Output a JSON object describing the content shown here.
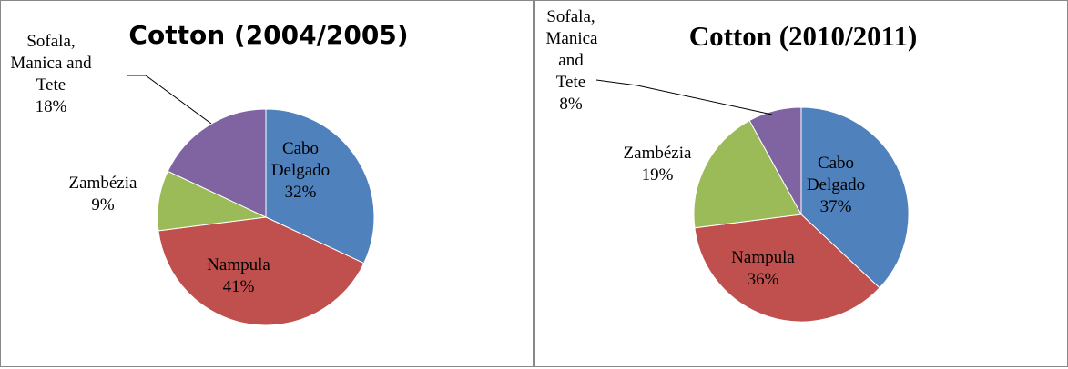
{
  "chart_data": [
    {
      "type": "pie",
      "title": "Cotton (2004/2005)",
      "categories": [
        "Cabo Delgado",
        "Nampula",
        "Zambézia",
        "Sofala, Manica and Tete"
      ],
      "values": [
        32,
        41,
        9,
        18
      ],
      "value_labels": [
        "32%",
        "41%",
        "9%",
        "18%"
      ],
      "colors": [
        "#4f81bd",
        "#c0504d",
        "#9bbb59",
        "#8064a2"
      ]
    },
    {
      "type": "pie",
      "title": "Cotton (2010/2011)",
      "categories": [
        "Cabo Delgado",
        "Nampula",
        "Zambézia",
        "Sofala, Manica and Tete"
      ],
      "values": [
        37,
        36,
        19,
        8
      ],
      "value_labels": [
        "37%",
        "36%",
        "19%",
        "8%"
      ],
      "colors": [
        "#4f81bd",
        "#c0504d",
        "#9bbb59",
        "#8064a2"
      ]
    }
  ]
}
